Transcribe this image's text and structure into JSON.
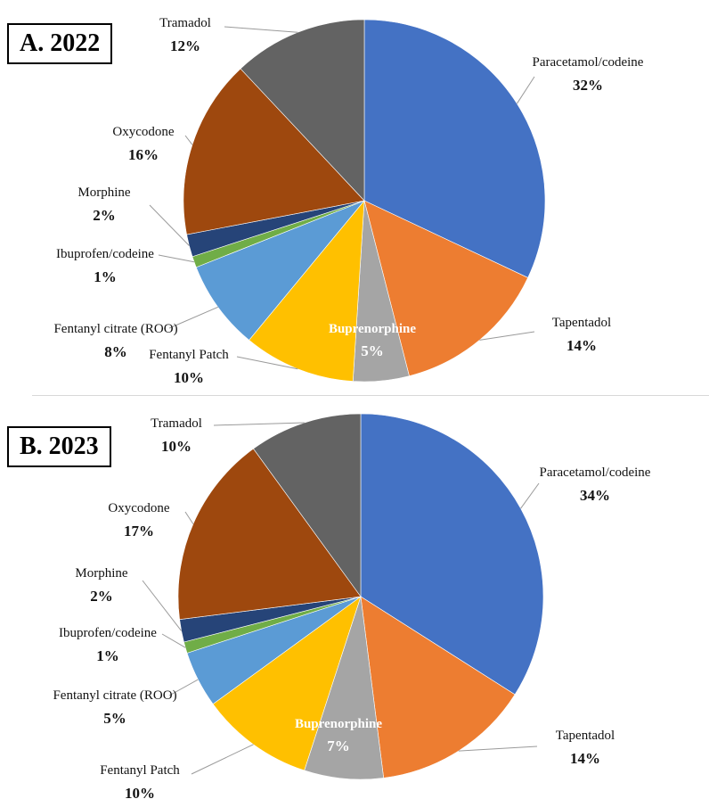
{
  "chart_data": [
    {
      "type": "pie",
      "title": "A. 2022",
      "start_angle_deg": 0,
      "direction": "clockwise",
      "slices": [
        {
          "label": "Paracetamol/codeine",
          "value": 32,
          "value_label": "32%",
          "color": "#4472C4"
        },
        {
          "label": "Tapentadol",
          "value": 14,
          "value_label": "14%",
          "color": "#ED7D31"
        },
        {
          "label": "Buprenorphine",
          "value": 5,
          "value_label": "5%",
          "color": "#A5A5A5"
        },
        {
          "label": "Fentanyl Patch",
          "value": 10,
          "value_label": "10%",
          "color": "#FFC000"
        },
        {
          "label": "Fentanyl citrate (ROO)",
          "value": 8,
          "value_label": "8%",
          "color": "#5B9BD5"
        },
        {
          "label": "Ibuprofen/codeine",
          "value": 1,
          "value_label": "1%",
          "color": "#70AD47"
        },
        {
          "label": "Morphine",
          "value": 2,
          "value_label": "2%",
          "color": "#264478"
        },
        {
          "label": "Oxycodone",
          "value": 16,
          "value_label": "16%",
          "color": "#9E480E"
        },
        {
          "label": "Tramadol",
          "value": 12,
          "value_label": "12%",
          "color": "#636363"
        }
      ]
    },
    {
      "type": "pie",
      "title": "B. 2023",
      "start_angle_deg": 0,
      "direction": "clockwise",
      "slices": [
        {
          "label": "Paracetamol/codeine",
          "value": 34,
          "value_label": "34%",
          "color": "#4472C4"
        },
        {
          "label": "Tapentadol",
          "value": 14,
          "value_label": "14%",
          "color": "#ED7D31"
        },
        {
          "label": "Buprenorphine",
          "value": 7,
          "value_label": "7%",
          "color": "#A5A5A5"
        },
        {
          "label": "Fentanyl Patch",
          "value": 10,
          "value_label": "10%",
          "color": "#FFC000"
        },
        {
          "label": "Fentanyl citrate (ROO)",
          "value": 5,
          "value_label": "5%",
          "color": "#5B9BD5"
        },
        {
          "label": "Ibuprofen/codeine",
          "value": 1,
          "value_label": "1%",
          "color": "#70AD47"
        },
        {
          "label": "Morphine",
          "value": 2,
          "value_label": "2%",
          "color": "#264478"
        },
        {
          "label": "Oxycodone",
          "value": 17,
          "value_label": "17%",
          "color": "#9E480E"
        },
        {
          "label": "Tramadol",
          "value": 10,
          "value_label": "10%",
          "color": "#636363"
        }
      ]
    }
  ]
}
